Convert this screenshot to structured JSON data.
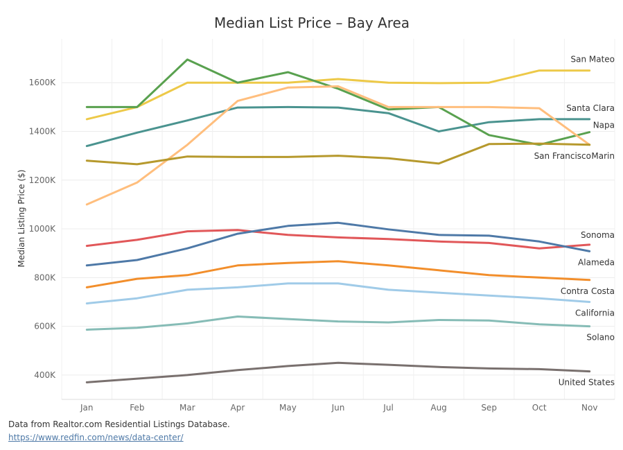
{
  "chart_data": {
    "type": "line",
    "title": "Median List Price – Bay Area",
    "ylabel": "Median Listing Price ($)",
    "xlabel": "",
    "categories": [
      "Jan",
      "Feb",
      "Mar",
      "Apr",
      "May",
      "Jun",
      "Jul",
      "Aug",
      "Sep",
      "Oct",
      "Nov"
    ],
    "ylim": [
      300000,
      1780000
    ],
    "yticks": [
      400000,
      600000,
      800000,
      1000000,
      1200000,
      1400000,
      1600000
    ],
    "ytick_labels": [
      "400K",
      "600K",
      "800K",
      "1000K",
      "1200K",
      "1400K",
      "1600K"
    ],
    "grid": true,
    "legend": "none",
    "series": [
      {
        "name": "San Mateo",
        "color": "#edc948",
        "values": [
          1450000,
          1500000,
          1600000,
          1600000,
          1600000,
          1615000,
          1600000,
          1598000,
          1600000,
          1650000,
          1650000
        ]
      },
      {
        "name": "Santa Clara",
        "color": "#4a938f",
        "values": [
          1340000,
          1395000,
          1445000,
          1498000,
          1500000,
          1498000,
          1475000,
          1400000,
          1438000,
          1450000,
          1450000
        ]
      },
      {
        "name": "Napa",
        "color": "#59a14f",
        "values": [
          1500000,
          1500000,
          1695000,
          1600000,
          1643000,
          1575000,
          1490000,
          1500000,
          1385000,
          1345000,
          1397000
        ]
      },
      {
        "name": "Marin",
        "color": "#ffbe7d",
        "values": [
          1100000,
          1190000,
          1345000,
          1525000,
          1580000,
          1585000,
          1500000,
          1500000,
          1500000,
          1495000,
          1345000
        ]
      },
      {
        "name": "San Francisco",
        "color": "#b6992d",
        "values": [
          1280000,
          1265000,
          1297000,
          1295000,
          1295000,
          1300000,
          1290000,
          1268000,
          1348000,
          1350000,
          1345000
        ]
      },
      {
        "name": "Sonoma",
        "color": "#e15759",
        "values": [
          930000,
          955000,
          990000,
          995000,
          975000,
          965000,
          958000,
          948000,
          942000,
          920000,
          935000
        ]
      },
      {
        "name": "Alameda",
        "color": "#4e79a7",
        "values": [
          850000,
          872000,
          920000,
          980000,
          1012000,
          1025000,
          998000,
          975000,
          972000,
          948000,
          908000
        ]
      },
      {
        "name": "Contra Costa",
        "color": "#f28e2b",
        "values": [
          760000,
          795000,
          810000,
          850000,
          860000,
          867000,
          850000,
          830000,
          810000,
          800000,
          790000
        ]
      },
      {
        "name": "California",
        "color": "#a0cbe8",
        "values": [
          694000,
          715000,
          750000,
          760000,
          776000,
          776000,
          750000,
          738000,
          726000,
          715000,
          700000
        ]
      },
      {
        "name": "Solano",
        "color": "#86bcb6",
        "values": [
          586000,
          594000,
          612000,
          640000,
          630000,
          620000,
          616000,
          626000,
          624000,
          608000,
          600000
        ]
      },
      {
        "name": "United States",
        "color": "#79706e",
        "values": [
          370000,
          385000,
          400000,
          420000,
          437000,
          450000,
          442000,
          433000,
          427000,
          424000,
          415000
        ]
      }
    ]
  },
  "footer": {
    "source_note": "Data from Realtor.com Residential Listings Database.",
    "source_link": "https://www.redfin.com/news/data-center/"
  }
}
